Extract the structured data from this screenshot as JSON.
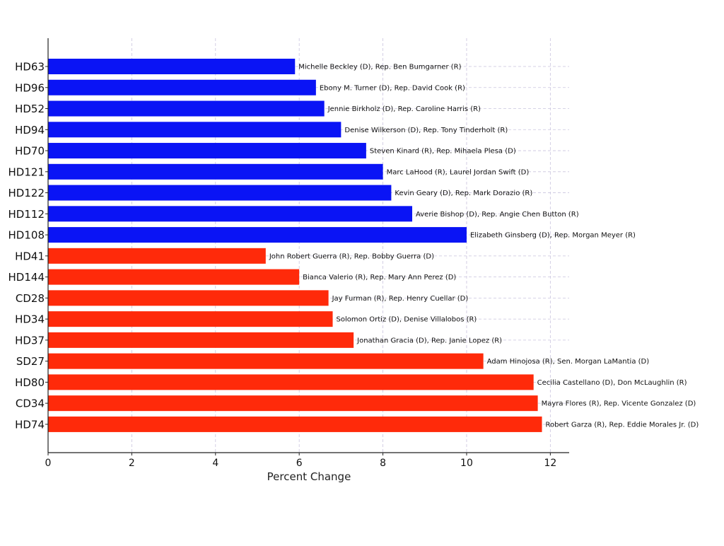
{
  "chart_data": {
    "type": "bar",
    "orientation": "horizontal",
    "title": "",
    "xlabel": "Percent Change",
    "ylabel": "",
    "xlim": [
      0,
      12.45
    ],
    "xticks": [
      0,
      2,
      4,
      6,
      8,
      10,
      12
    ],
    "grid": true,
    "colors": {
      "blue_group": "#0a14f5",
      "red_group": "#ff2a0a"
    },
    "bars": [
      {
        "category": "HD63",
        "value": 5.9,
        "group": "blue_group",
        "label": "Michelle Beckley (D), Rep. Ben Bumgarner (R)"
      },
      {
        "category": "HD96",
        "value": 6.4,
        "group": "blue_group",
        "label": "Ebony M. Turner (D), Rep. David Cook (R)"
      },
      {
        "category": "HD52",
        "value": 6.6,
        "group": "blue_group",
        "label": "Jennie Birkholz (D), Rep. Caroline Harris (R)"
      },
      {
        "category": "HD94",
        "value": 7.0,
        "group": "blue_group",
        "label": "Denise Wilkerson (D), Rep. Tony Tinderholt (R)"
      },
      {
        "category": "HD70",
        "value": 7.6,
        "group": "blue_group",
        "label": "Steven Kinard (R), Rep. Mihaela Plesa (D)"
      },
      {
        "category": "HD121",
        "value": 8.0,
        "group": "blue_group",
        "label": "Marc LaHood (R), Laurel Jordan Swift (D)"
      },
      {
        "category": "HD122",
        "value": 8.2,
        "group": "blue_group",
        "label": "Kevin Geary (D), Rep. Mark Dorazio (R)"
      },
      {
        "category": "HD112",
        "value": 8.7,
        "group": "blue_group",
        "label": "Averie Bishop (D), Rep. Angie Chen Button (R)"
      },
      {
        "category": "HD108",
        "value": 10.0,
        "group": "blue_group",
        "label": "Elizabeth Ginsberg (D), Rep. Morgan Meyer (R)"
      },
      {
        "category": "HD41",
        "value": 5.2,
        "group": "red_group",
        "label": "John Robert Guerra (R), Rep. Bobby Guerra (D)"
      },
      {
        "category": "HD144",
        "value": 6.0,
        "group": "red_group",
        "label": "Bianca Valerio (R), Rep. Mary Ann Perez (D)"
      },
      {
        "category": "CD28",
        "value": 6.7,
        "group": "red_group",
        "label": "Jay Furman (R), Rep. Henry Cuellar (D)"
      },
      {
        "category": "HD34",
        "value": 6.8,
        "group": "red_group",
        "label": "Solomon Ortiz (D), Denise Villalobos (R)"
      },
      {
        "category": "HD37",
        "value": 7.3,
        "group": "red_group",
        "label": "Jonathan Gracia (D), Rep. Janie Lopez (R)"
      },
      {
        "category": "SD27",
        "value": 10.4,
        "group": "red_group",
        "label": "Adam Hinojosa (R), Sen. Morgan LaMantia (D)"
      },
      {
        "category": "HD80",
        "value": 11.6,
        "group": "red_group",
        "label": "Cecilia Castellano (D), Don McLaughlin (R)"
      },
      {
        "category": "CD34",
        "value": 11.7,
        "group": "red_group",
        "label": "Mayra Flores (R), Rep. Vicente Gonzalez (D)"
      },
      {
        "category": "HD74",
        "value": 11.8,
        "group": "red_group",
        "label": "Robert Garza (R), Rep. Eddie Morales Jr. (D)"
      }
    ]
  }
}
